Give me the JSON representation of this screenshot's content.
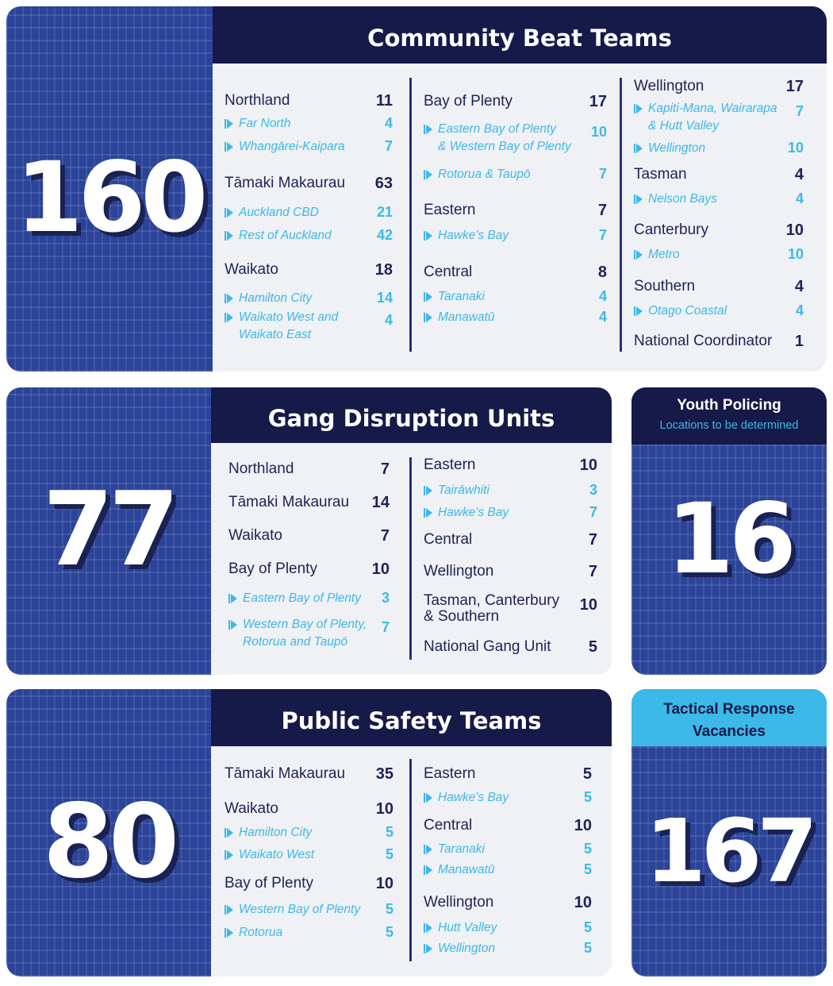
{
  "community_beat_teams": {
    "total": "160",
    "title": "Community Beat Teams",
    "col1": [
      {
        "name": "Northland",
        "value": "11"
      },
      {
        "name": "Far North",
        "value": "4",
        "sub": true
      },
      {
        "name": "Whangārei-Kaipara",
        "value": "7",
        "sub": true
      },
      {
        "name": "Tāmaki Makaurau",
        "value": "63"
      },
      {
        "name": "Auckland CBD",
        "value": "21",
        "sub": true
      },
      {
        "name": "Rest of Auckland",
        "value": "42",
        "sub": true
      },
      {
        "name": "Waikato",
        "value": "18"
      },
      {
        "name": "Hamilton City",
        "value": "14",
        "sub": true
      },
      {
        "name": "Waikato West and",
        "name2": "Waikato East",
        "value": "4",
        "sub": true
      }
    ],
    "col2": [
      {
        "name": "Bay of Plenty",
        "value": "17"
      },
      {
        "name": "Eastern Bay of Plenty",
        "name2": "& Western Bay of Plenty",
        "value": "10",
        "sub": true
      },
      {
        "name": "Rotorua & Taupō",
        "value": "7",
        "sub": true
      },
      {
        "name": "Eastern",
        "value": "7"
      },
      {
        "name": "Hawke's Bay",
        "value": "7",
        "sub": true
      },
      {
        "name": "Central",
        "value": "8"
      },
      {
        "name": "Taranaki",
        "value": "4",
        "sub": true
      },
      {
        "name": "Manawatū",
        "value": "4",
        "sub": true
      }
    ],
    "col3": [
      {
        "name": "Wellington",
        "value": "17"
      },
      {
        "name": "Kapiti-Mana, Wairarapa",
        "name2": "& Hutt Valley",
        "value": "7",
        "sub": true
      },
      {
        "name": "Wellington",
        "value": "10",
        "sub": true
      },
      {
        "name": "Tasman",
        "value": "4"
      },
      {
        "name": "Nelson Bays",
        "value": "4",
        "sub": true
      },
      {
        "name": "Canterbury",
        "value": "10"
      },
      {
        "name": "Metro",
        "value": "10",
        "sub": true
      },
      {
        "name": "Southern",
        "value": "4"
      },
      {
        "name": "Otago Coastal",
        "value": "4",
        "sub": true
      },
      {
        "name": "National Coordinator",
        "value": "1"
      }
    ]
  },
  "gang_disruption_units": {
    "total": "77",
    "title": "Gang Disruption Units",
    "col1": [
      {
        "name": "Northland",
        "value": "7"
      },
      {
        "name": "Tāmaki Makaurau",
        "value": "14"
      },
      {
        "name": "Waikato",
        "value": "7"
      },
      {
        "name": "Bay of Plenty",
        "value": "10"
      },
      {
        "name": "Eastern Bay of Plenty",
        "value": "3",
        "sub": true
      },
      {
        "name": "Western Bay of Plenty,",
        "name2": "Rotorua and Taupō",
        "value": "7",
        "sub": true
      }
    ],
    "col2": [
      {
        "name": "Eastern",
        "value": "10"
      },
      {
        "name": "Tairāwhiti",
        "value": "3",
        "sub": true
      },
      {
        "name": "Hawke's Bay",
        "value": "7",
        "sub": true
      },
      {
        "name": "Central",
        "value": "7"
      },
      {
        "name": "Wellington",
        "value": "7"
      },
      {
        "name": "Tasman, Canterbury",
        "name2": "& Southern",
        "value": "10"
      },
      {
        "name": "National Gang Unit",
        "value": "5"
      }
    ]
  },
  "youth_policing": {
    "title": "Youth Policing",
    "subtitle": "Locations to be determined",
    "total": "16"
  },
  "public_safety_teams": {
    "total": "80",
    "title": "Public Safety Teams",
    "col1": [
      {
        "name": "Tāmaki Makaurau",
        "value": "35"
      },
      {
        "name": "Waikato",
        "value": "10"
      },
      {
        "name": "Hamilton City",
        "value": "5",
        "sub": true
      },
      {
        "name": "Waikato West",
        "value": "5",
        "sub": true
      },
      {
        "name": "Bay of Plenty",
        "value": "10"
      },
      {
        "name": "Western Bay of Plenty",
        "value": "5",
        "sub": true
      },
      {
        "name": "Rotorua",
        "value": "5",
        "sub": true
      }
    ],
    "col2": [
      {
        "name": "Eastern",
        "value": "5"
      },
      {
        "name": "Hawke's Bay",
        "value": "5",
        "sub": true
      },
      {
        "name": "Central",
        "value": "10"
      },
      {
        "name": "Taranaki",
        "value": "5",
        "sub": true
      },
      {
        "name": "Manawatū",
        "value": "5",
        "sub": true
      },
      {
        "name": "Wellington",
        "value": "10"
      },
      {
        "name": "Hutt Valley",
        "value": "5",
        "sub": true
      },
      {
        "name": "Wellington",
        "value": "5",
        "sub": true
      }
    ]
  },
  "tactical_response": {
    "title_line1": "Tactical Response",
    "title_line2": "Vacancies",
    "total": "167"
  }
}
